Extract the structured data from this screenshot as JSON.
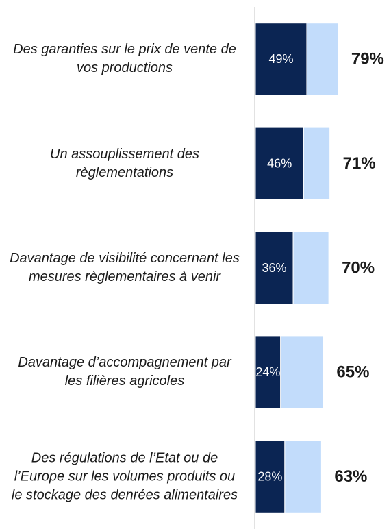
{
  "chart_data": {
    "type": "stacked-barh",
    "categories": [
      "Des garanties sur le prix de vente de vos productions",
      "Un assouplissement des règlementations",
      "Davantage de visibilité concernant les mesures règlementaires à venir",
      "Davantage d’accompagnement par les filières agricoles",
      "Des régulations de l’Etat ou de l’Europe sur les volumes produits ou le stockage des denrées alimentaires"
    ],
    "series": [
      {
        "color": "#0b2553",
        "values": [
          49,
          46,
          36,
          24,
          28
        ],
        "value_labels": [
          "49%",
          "46%",
          "36%",
          "24%",
          "28%"
        ]
      },
      {
        "color": "#c2dcfb",
        "values": [
          30,
          25,
          34,
          41,
          35
        ]
      }
    ],
    "totals": [
      79,
      71,
      70,
      65,
      63
    ],
    "total_labels": [
      "79%",
      "71%",
      "70%",
      "65%",
      "63%"
    ],
    "xlim": [
      0,
      100
    ]
  }
}
